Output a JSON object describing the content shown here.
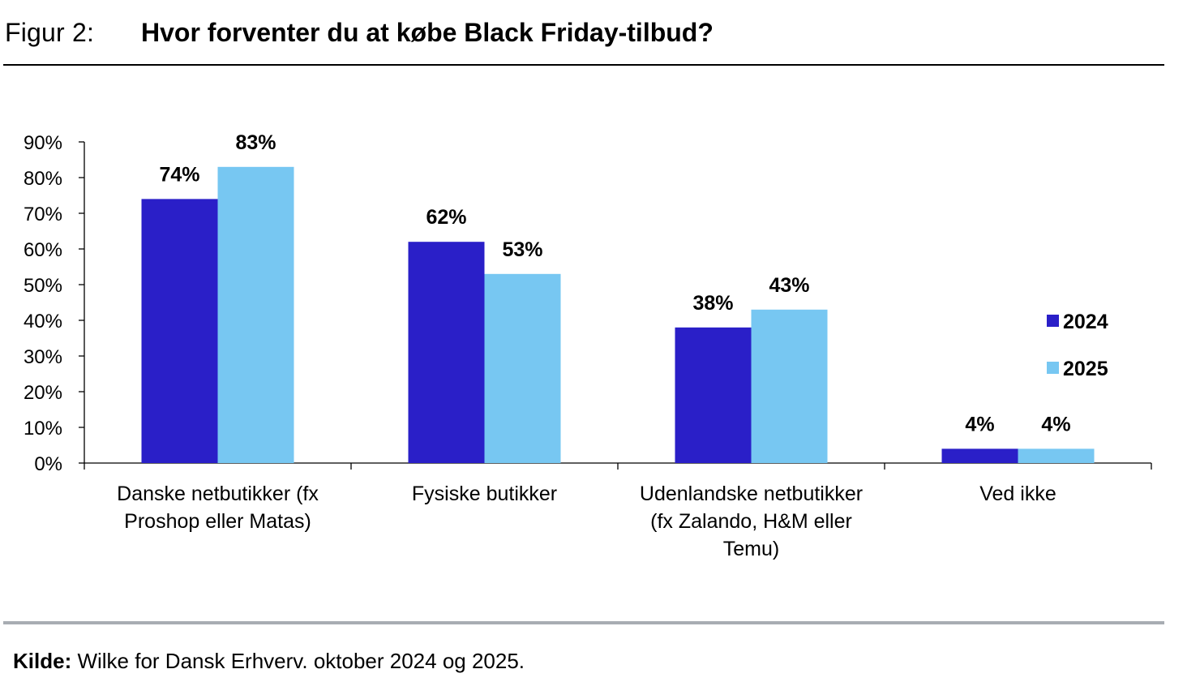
{
  "figure": {
    "label": "Figur 2:",
    "title": "Hvor forventer du at købe Black Friday-tilbud?"
  },
  "source": {
    "label": "Kilde:",
    "text": " Wilke for Dansk Erhverv. oktober 2024 og 2025."
  },
  "chart_data": {
    "type": "bar",
    "title": "Hvor forventer du at købe Black Friday-tilbud?",
    "xlabel": "",
    "ylabel": "",
    "ylim": [
      0,
      90
    ],
    "y_ticks": [
      "0%",
      "10%",
      "20%",
      "30%",
      "40%",
      "50%",
      "60%",
      "70%",
      "80%",
      "90%"
    ],
    "categories": [
      [
        "Danske netbutikker (fx",
        "Proshop eller Matas)"
      ],
      [
        "Fysiske butikker"
      ],
      [
        "Udenlandske netbutikker",
        "(fx Zalando, H&M eller",
        "Temu)"
      ],
      [
        "Ved ikke"
      ]
    ],
    "series": [
      {
        "name": "2024",
        "color": "#2a1fc8",
        "values": [
          74,
          62,
          38,
          4
        ],
        "labels": [
          "74%",
          "62%",
          "38%",
          "4%"
        ]
      },
      {
        "name": "2025",
        "color": "#77c7f2",
        "values": [
          83,
          53,
          43,
          4
        ],
        "labels": [
          "83%",
          "53%",
          "43%",
          "4%"
        ]
      }
    ],
    "legend": "right"
  }
}
